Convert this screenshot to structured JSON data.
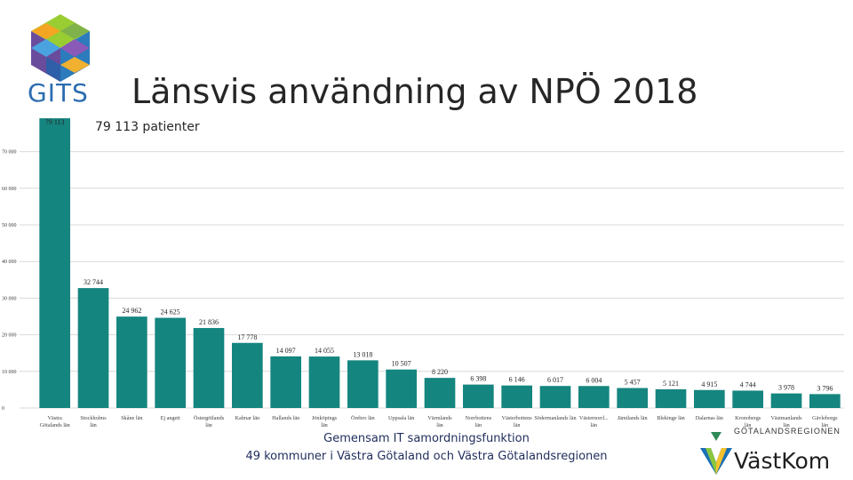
{
  "header": {
    "logo_text": "GITS",
    "title": "Länsvis användning av NPÖ 2018",
    "subtitle": "79 113 patienter"
  },
  "footer": {
    "line1": "Gemensam IT samordningsfunktion",
    "line2": "49 kommuner i Västra Götaland och Västra Götalandsregionen",
    "vk_logo_text": "VästKom",
    "vgr_text": "GÖTALANDSREGIONEN"
  },
  "colors": {
    "bar": "#15857f",
    "grid": "#d9d9d9",
    "axis_text": "#404040"
  },
  "chart_data": {
    "type": "bar",
    "title": "",
    "xlabel": "",
    "ylabel": "",
    "ylim": [
      0,
      80000
    ],
    "yticks": [
      0,
      10000,
      20000,
      30000,
      40000,
      50000,
      60000,
      70000
    ],
    "ytick_labels": [
      "0",
      "10 000",
      "20 000",
      "30 000",
      "40 000",
      "50 000",
      "60 000",
      "70 000"
    ],
    "grid": true,
    "categories": [
      [
        "Västra",
        "Götalands län"
      ],
      [
        "Stockholms",
        "län"
      ],
      [
        "Skåne län"
      ],
      [
        "Ej angett"
      ],
      [
        "Östergötlands",
        "län"
      ],
      [
        "Kalmar län"
      ],
      [
        "Hallands län"
      ],
      [
        "Jönköpings",
        "län"
      ],
      [
        "Örebro län"
      ],
      [
        "Uppsala län"
      ],
      [
        "Värmlands",
        "län"
      ],
      [
        "Norrbottens",
        "län"
      ],
      [
        "Västerbottens",
        "län"
      ],
      [
        "Södermanlands län"
      ],
      [
        "Västernorrl...",
        "län"
      ],
      [
        "Jämtlands län"
      ],
      [
        "Blekinge län"
      ],
      [
        "Dalarnas län"
      ],
      [
        "Kronobergs",
        "län"
      ],
      [
        "Västmanlands",
        "län"
      ],
      [
        "Gävleborgs",
        "län"
      ]
    ],
    "values": [
      79113,
      32744,
      24962,
      24625,
      21836,
      17778,
      14097,
      14055,
      13018,
      10507,
      8220,
      6398,
      6146,
      6017,
      6004,
      5457,
      5121,
      4915,
      4744,
      3978,
      3796
    ],
    "value_labels": [
      "79 113",
      "32 744",
      "24 962",
      "24 625",
      "21 836",
      "17 778",
      "14 097",
      "14 055",
      "13 018",
      "10 507",
      "8 220",
      "6 398",
      "6 146",
      "6 017",
      "6 004",
      "5 457",
      "5 121",
      "4 915",
      "4 744",
      "3 978",
      "3 796"
    ]
  }
}
